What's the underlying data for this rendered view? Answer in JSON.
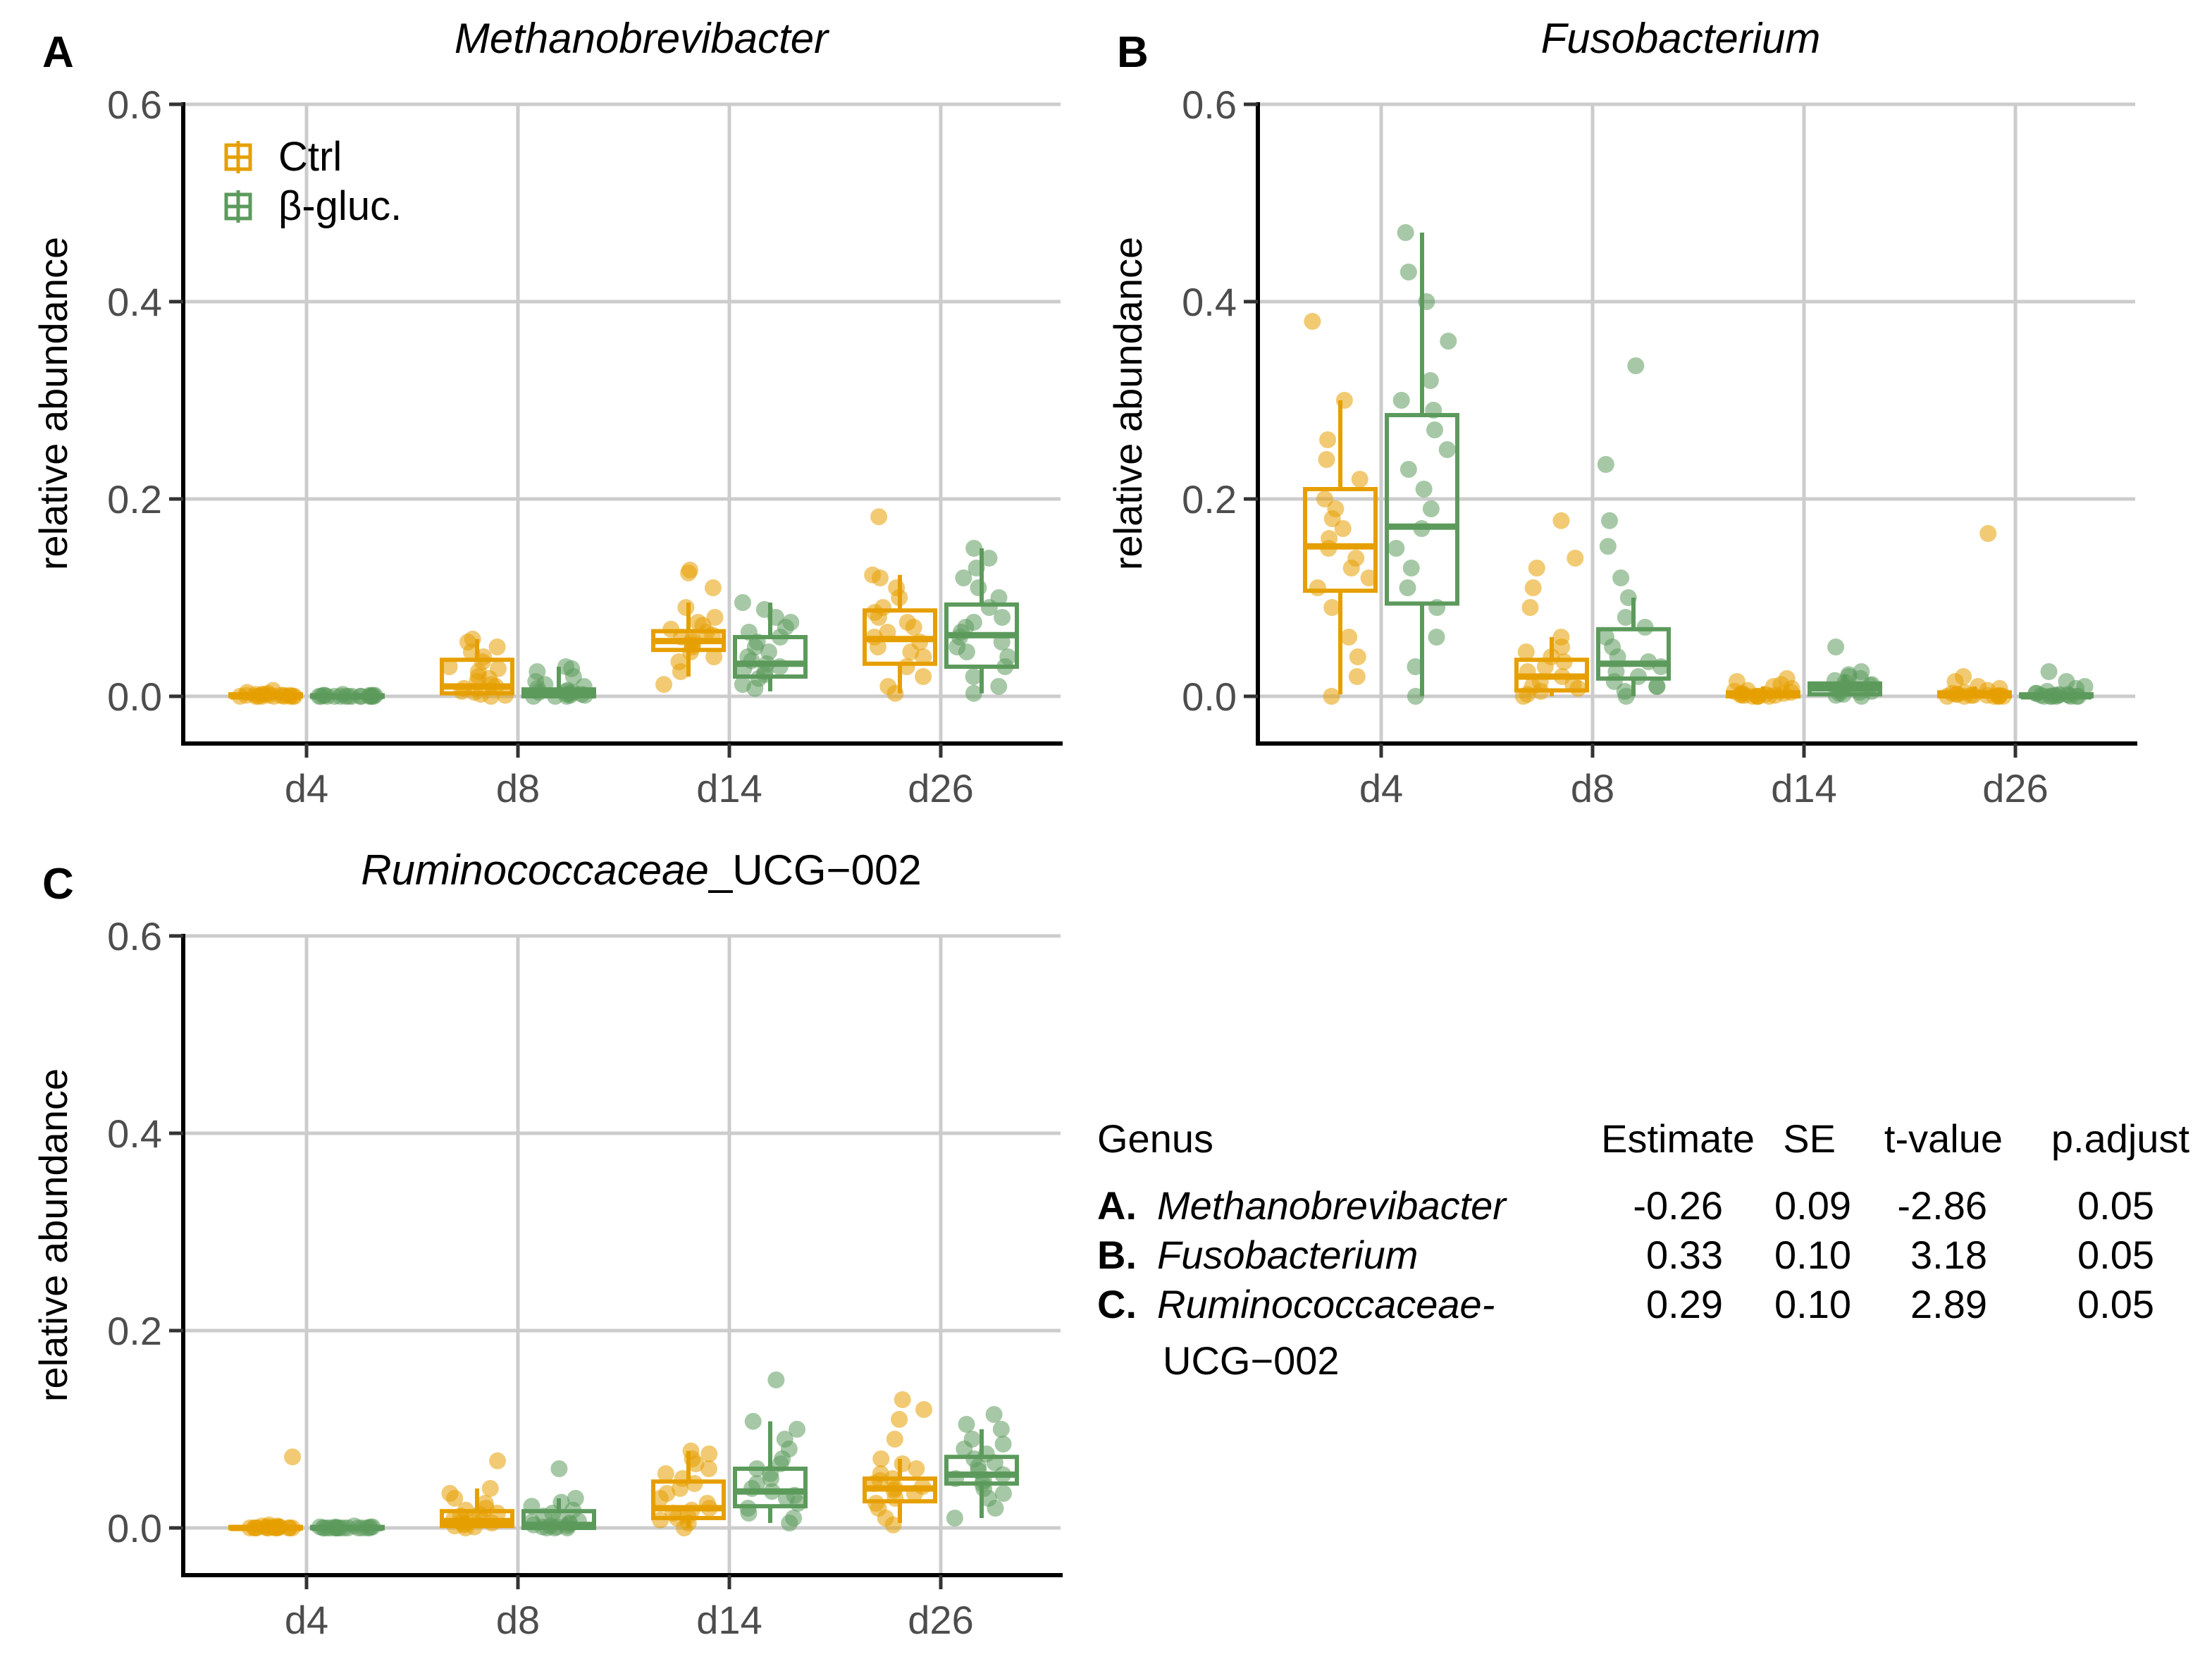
{
  "colors": {
    "ctrl": "#E69F00",
    "bgluc": "#5C9A5C",
    "grid": "#CCCCCC",
    "axis": "#000000",
    "tick_text": "#4D4D4D"
  },
  "chart_data": [
    {
      "panel": "A",
      "type": "box",
      "title": "Methanobrevibacter",
      "xlabel": "",
      "ylabel": "relative abundance",
      "categories": [
        "d4",
        "d8",
        "d14",
        "d26"
      ],
      "ylim": [
        -0.05,
        0.6
      ],
      "yticks": [
        0.0,
        0.2,
        0.4,
        0.6
      ],
      "ytick_labels": [
        "0.0",
        "0.2",
        "0.4",
        "0.6"
      ],
      "grid": true,
      "legend": "top-left",
      "series": [
        {
          "name": "Ctrl",
          "color": "#E69F00",
          "boxes": [
            {
              "q1": 0.0,
              "median": 0.0,
              "q3": 0.002,
              "whisker_low": 0.0,
              "whisker_high": 0.006,
              "points": [
                0.0,
                0.0,
                0.001,
                0.0,
                0.002,
                0.006,
                0.001,
                0.0,
                0.003,
                0.0,
                0.001,
                0.004,
                0.0,
                0.0,
                0.002,
                0.001,
                0.0,
                0.0,
                0.002,
                0.001
              ]
            },
            {
              "q1": 0.003,
              "median": 0.01,
              "q3": 0.037,
              "whisker_low": 0.0,
              "whisker_high": 0.058,
              "points": [
                0.0,
                0.002,
                0.004,
                0.008,
                0.01,
                0.012,
                0.015,
                0.02,
                0.025,
                0.03,
                0.035,
                0.04,
                0.045,
                0.05,
                0.055,
                0.058,
                0.005,
                0.001,
                0.018,
                0.028
              ]
            },
            {
              "q1": 0.047,
              "median": 0.056,
              "q3": 0.066,
              "whisker_low": 0.02,
              "whisker_high": 0.095,
              "points": [
                0.012,
                0.025,
                0.035,
                0.04,
                0.045,
                0.05,
                0.052,
                0.055,
                0.058,
                0.06,
                0.062,
                0.065,
                0.068,
                0.072,
                0.075,
                0.08,
                0.09,
                0.11,
                0.125,
                0.128
              ]
            },
            {
              "q1": 0.033,
              "median": 0.058,
              "q3": 0.087,
              "whisker_low": 0.003,
              "whisker_high": 0.123,
              "points": [
                0.003,
                0.01,
                0.02,
                0.03,
                0.04,
                0.045,
                0.05,
                0.055,
                0.06,
                0.065,
                0.07,
                0.075,
                0.08,
                0.085,
                0.09,
                0.1,
                0.11,
                0.12,
                0.123,
                0.182
              ]
            }
          ]
        },
        {
          "name": "β-gluc.",
          "color": "#5C9A5C",
          "boxes": [
            {
              "q1": 0.0,
              "median": 0.0,
              "q3": 0.001,
              "whisker_low": 0.0,
              "whisker_high": 0.002,
              "points": [
                0.0,
                0.0,
                0.0,
                0.001,
                0.0,
                0.0,
                0.001,
                0.0,
                0.002,
                0.0,
                0.0,
                0.001,
                0.0,
                0.0,
                0.0,
                0.001,
                0.0,
                0.0,
                0.0,
                0.001
              ]
            },
            {
              "q1": 0.0,
              "median": 0.002,
              "q3": 0.007,
              "whisker_low": 0.0,
              "whisker_high": 0.03,
              "points": [
                0.0,
                0.0,
                0.001,
                0.002,
                0.003,
                0.004,
                0.005,
                0.006,
                0.008,
                0.01,
                0.012,
                0.015,
                0.02,
                0.025,
                0.028,
                0.03,
                0.0,
                0.001,
                0.002,
                0.004
              ]
            },
            {
              "q1": 0.02,
              "median": 0.033,
              "q3": 0.06,
              "whisker_low": 0.005,
              "whisker_high": 0.095,
              "points": [
                0.008,
                0.012,
                0.018,
                0.022,
                0.025,
                0.028,
                0.03,
                0.033,
                0.036,
                0.04,
                0.045,
                0.05,
                0.055,
                0.06,
                0.065,
                0.07,
                0.075,
                0.08,
                0.088,
                0.095
              ]
            },
            {
              "q1": 0.03,
              "median": 0.062,
              "q3": 0.093,
              "whisker_low": 0.003,
              "whisker_high": 0.15,
              "points": [
                0.003,
                0.01,
                0.02,
                0.03,
                0.04,
                0.045,
                0.05,
                0.055,
                0.06,
                0.065,
                0.07,
                0.075,
                0.08,
                0.09,
                0.1,
                0.11,
                0.12,
                0.13,
                0.14,
                0.15
              ]
            }
          ]
        }
      ]
    },
    {
      "panel": "B",
      "type": "box",
      "title": "Fusobacterium",
      "xlabel": "",
      "ylabel": "relative abundance",
      "categories": [
        "d4",
        "d8",
        "d14",
        "d26"
      ],
      "ylim": [
        -0.05,
        0.6
      ],
      "yticks": [
        0.0,
        0.2,
        0.4,
        0.6
      ],
      "ytick_labels": [
        "0.0",
        "0.2",
        "0.4",
        "0.6"
      ],
      "grid": true,
      "legend": "none",
      "series": [
        {
          "name": "Ctrl",
          "color": "#E69F00",
          "boxes": [
            {
              "q1": 0.107,
              "median": 0.152,
              "q3": 0.21,
              "whisker_low": 0.002,
              "whisker_high": 0.3,
              "points": [
                0.0,
                0.02,
                0.04,
                0.06,
                0.09,
                0.11,
                0.12,
                0.13,
                0.14,
                0.15,
                0.16,
                0.17,
                0.18,
                0.19,
                0.2,
                0.22,
                0.24,
                0.26,
                0.3,
                0.38
              ]
            },
            {
              "q1": 0.006,
              "median": 0.02,
              "q3": 0.037,
              "whisker_low": 0.0,
              "whisker_high": 0.06,
              "points": [
                0.0,
                0.002,
                0.005,
                0.008,
                0.01,
                0.012,
                0.015,
                0.02,
                0.025,
                0.03,
                0.035,
                0.04,
                0.045,
                0.05,
                0.06,
                0.09,
                0.11,
                0.13,
                0.14,
                0.178
              ]
            },
            {
              "q1": 0.0,
              "median": 0.001,
              "q3": 0.004,
              "whisker_low": 0.0,
              "whisker_high": 0.01,
              "points": [
                0.0,
                0.0,
                0.0,
                0.001,
                0.001,
                0.002,
                0.003,
                0.004,
                0.005,
                0.006,
                0.008,
                0.01,
                0.012,
                0.015,
                0.018,
                0.002,
                0.0,
                0.001,
                0.003,
                0.0
              ]
            },
            {
              "q1": 0.0,
              "median": 0.001,
              "q3": 0.004,
              "whisker_low": 0.0,
              "whisker_high": 0.01,
              "points": [
                0.0,
                0.0,
                0.0,
                0.001,
                0.001,
                0.002,
                0.003,
                0.004,
                0.006,
                0.008,
                0.01,
                0.015,
                0.02,
                0.165,
                0.0,
                0.001,
                0.0,
                0.002,
                0.0,
                0.001
              ]
            }
          ]
        },
        {
          "name": "β-gluc.",
          "color": "#5C9A5C",
          "boxes": [
            {
              "q1": 0.094,
              "median": 0.172,
              "q3": 0.285,
              "whisker_low": 0.0,
              "whisker_high": 0.47,
              "points": [
                0.0,
                0.03,
                0.06,
                0.09,
                0.11,
                0.13,
                0.15,
                0.17,
                0.19,
                0.21,
                0.23,
                0.25,
                0.27,
                0.29,
                0.3,
                0.32,
                0.36,
                0.4,
                0.43,
                0.47
              ]
            },
            {
              "q1": 0.018,
              "median": 0.033,
              "q3": 0.068,
              "whisker_low": 0.0,
              "whisker_high": 0.1,
              "points": [
                0.0,
                0.005,
                0.01,
                0.015,
                0.02,
                0.025,
                0.03,
                0.035,
                0.04,
                0.05,
                0.06,
                0.07,
                0.08,
                0.1,
                0.12,
                0.152,
                0.178,
                0.235,
                0.335,
                0.01
              ]
            },
            {
              "q1": 0.002,
              "median": 0.008,
              "q3": 0.013,
              "whisker_low": 0.0,
              "whisker_high": 0.022,
              "points": [
                0.0,
                0.001,
                0.002,
                0.004,
                0.006,
                0.008,
                0.01,
                0.012,
                0.014,
                0.016,
                0.018,
                0.02,
                0.022,
                0.025,
                0.05,
                0.003,
                0.007,
                0.009,
                0.005,
                0.011
              ]
            },
            {
              "q1": 0.0,
              "median": 0.0,
              "q3": 0.002,
              "whisker_low": 0.0,
              "whisker_high": 0.005,
              "points": [
                0.0,
                0.0,
                0.0,
                0.001,
                0.001,
                0.002,
                0.003,
                0.005,
                0.008,
                0.01,
                0.015,
                0.025,
                0.0,
                0.001,
                0.0,
                0.002,
                0.0,
                0.001,
                0.0,
                0.003
              ]
            }
          ]
        }
      ]
    },
    {
      "panel": "C",
      "type": "box",
      "title_italic": "Ruminococcaceae",
      "title_rest": "_UCG−002",
      "xlabel": "",
      "ylabel": "relative abundance",
      "categories": [
        "d4",
        "d8",
        "d14",
        "d26"
      ],
      "ylim": [
        -0.05,
        0.6
      ],
      "yticks": [
        0.0,
        0.2,
        0.4,
        0.6
      ],
      "ytick_labels": [
        "0.0",
        "0.2",
        "0.4",
        "0.6"
      ],
      "grid": true,
      "legend": "none",
      "series": [
        {
          "name": "Ctrl",
          "color": "#E69F00",
          "boxes": [
            {
              "q1": 0.0,
              "median": 0.0,
              "q3": 0.001,
              "whisker_low": 0.0,
              "whisker_high": 0.003,
              "points": [
                0.0,
                0.0,
                0.0,
                0.001,
                0.0,
                0.002,
                0.0,
                0.001,
                0.0,
                0.0,
                0.003,
                0.0,
                0.001,
                0.0,
                0.0,
                0.072,
                0.0,
                0.001,
                0.0,
                0.002
              ]
            },
            {
              "q1": 0.002,
              "median": 0.007,
              "q3": 0.017,
              "whisker_low": 0.0,
              "whisker_high": 0.04,
              "points": [
                0.0,
                0.002,
                0.004,
                0.006,
                0.008,
                0.01,
                0.012,
                0.015,
                0.018,
                0.02,
                0.025,
                0.03,
                0.035,
                0.04,
                0.068,
                0.001,
                0.003,
                0.005,
                0.009,
                0.014
              ]
            },
            {
              "q1": 0.01,
              "median": 0.02,
              "q3": 0.047,
              "whisker_low": 0.0,
              "whisker_high": 0.078,
              "points": [
                0.0,
                0.005,
                0.01,
                0.012,
                0.015,
                0.018,
                0.02,
                0.025,
                0.03,
                0.035,
                0.04,
                0.045,
                0.05,
                0.055,
                0.06,
                0.065,
                0.07,
                0.075,
                0.078,
                0.008
              ]
            },
            {
              "q1": 0.027,
              "median": 0.04,
              "q3": 0.05,
              "whisker_low": 0.005,
              "whisker_high": 0.07,
              "points": [
                0.003,
                0.01,
                0.02,
                0.025,
                0.03,
                0.035,
                0.038,
                0.04,
                0.042,
                0.045,
                0.048,
                0.05,
                0.055,
                0.06,
                0.065,
                0.07,
                0.09,
                0.11,
                0.12,
                0.13
              ]
            }
          ]
        },
        {
          "name": "β-gluc.",
          "color": "#5C9A5C",
          "boxes": [
            {
              "q1": 0.0,
              "median": 0.0,
              "q3": 0.001,
              "whisker_low": 0.0,
              "whisker_high": 0.002,
              "points": [
                0.0,
                0.0,
                0.0,
                0.0,
                0.001,
                0.0,
                0.0,
                0.001,
                0.0,
                0.0,
                0.002,
                0.0,
                0.0,
                0.001,
                0.0,
                0.0,
                0.0,
                0.001,
                0.0,
                0.0
              ]
            },
            {
              "q1": 0.0,
              "median": 0.003,
              "q3": 0.017,
              "whisker_low": 0.0,
              "whisker_high": 0.03,
              "points": [
                0.0,
                0.0,
                0.001,
                0.002,
                0.003,
                0.004,
                0.005,
                0.007,
                0.009,
                0.012,
                0.015,
                0.018,
                0.022,
                0.026,
                0.03,
                0.06,
                0.0,
                0.001,
                0.002,
                0.006
              ]
            },
            {
              "q1": 0.022,
              "median": 0.037,
              "q3": 0.06,
              "whisker_low": 0.005,
              "whisker_high": 0.108,
              "points": [
                0.005,
                0.01,
                0.015,
                0.02,
                0.025,
                0.03,
                0.033,
                0.037,
                0.04,
                0.045,
                0.05,
                0.055,
                0.06,
                0.065,
                0.07,
                0.08,
                0.09,
                0.1,
                0.108,
                0.15
              ]
            },
            {
              "q1": 0.045,
              "median": 0.054,
              "q3": 0.072,
              "whisker_low": 0.01,
              "whisker_high": 0.1,
              "points": [
                0.01,
                0.02,
                0.03,
                0.035,
                0.04,
                0.045,
                0.048,
                0.05,
                0.054,
                0.058,
                0.062,
                0.066,
                0.07,
                0.075,
                0.08,
                0.085,
                0.09,
                0.1,
                0.105,
                0.115
              ]
            }
          ]
        }
      ]
    }
  ],
  "table": {
    "headers": {
      "genus": "Genus",
      "estimate": "Estimate",
      "se": "SE",
      "tvalue": "t-value",
      "padjust": "p.adjust"
    },
    "rows": [
      {
        "letter": "A.",
        "genus": "Methanobrevibacter",
        "genus_line2": "",
        "estimate": "-0.26",
        "se": "0.09",
        "tvalue": "-2.86",
        "padjust": "0.05"
      },
      {
        "letter": "B.",
        "genus": "Fusobacterium",
        "genus_line2": "",
        "estimate": "0.33",
        "se": "0.10",
        "tvalue": "3.18",
        "padjust": "0.05"
      },
      {
        "letter": "C.",
        "genus": "Ruminococcaceae-",
        "genus_line2": "UCG−002",
        "estimate": "0.29",
        "se": "0.10",
        "tvalue": "2.89",
        "padjust": "0.05"
      }
    ]
  }
}
